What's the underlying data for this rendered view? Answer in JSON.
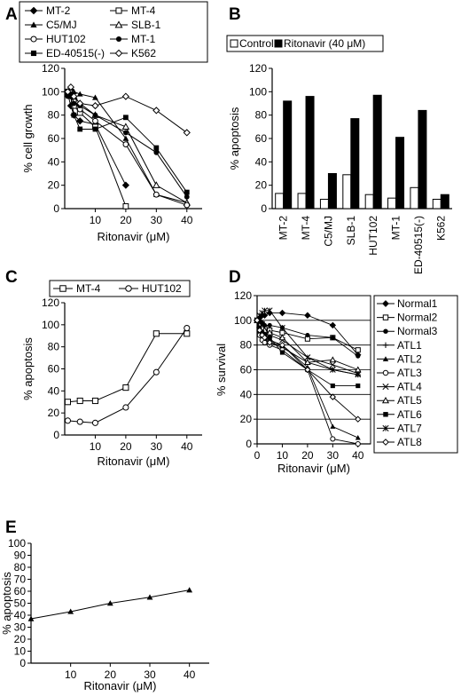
{
  "panels": [
    {
      "id": "A",
      "label": "A"
    },
    {
      "id": "B",
      "label": "B"
    },
    {
      "id": "C",
      "label": "C"
    },
    {
      "id": "D",
      "label": "D"
    },
    {
      "id": "E",
      "label": "E"
    }
  ],
  "chart_data": [
    {
      "panel": "A",
      "type": "line",
      "xlabel": "Ritonavir (μM)",
      "ylabel": "% cell growth",
      "xlim": [
        0,
        45
      ],
      "ylim": [
        0,
        120
      ],
      "xticks": [
        10,
        20,
        30,
        40
      ],
      "yticks": [
        0,
        20,
        40,
        60,
        80,
        100,
        120
      ],
      "legend_position": "top",
      "series": [
        {
          "name": "MT-2",
          "marker": "diamond-filled",
          "x": [
            1,
            2,
            3,
            5,
            10,
            20
          ],
          "y": [
            98,
            88,
            80,
            75,
            72,
            20
          ]
        },
        {
          "name": "MT-4",
          "marker": "square-open",
          "x": [
            1,
            2,
            3,
            5,
            10,
            20
          ],
          "y": [
            100,
            100,
            88,
            82,
            70,
            2
          ]
        },
        {
          "name": "C5/MJ",
          "marker": "triangle-filled",
          "x": [
            1,
            2,
            3,
            5,
            10,
            20,
            30,
            40
          ],
          "y": [
            100,
            102,
            100,
            98,
            95,
            60,
            12,
            5
          ]
        },
        {
          "name": "SLB-1",
          "marker": "triangle-open",
          "x": [
            1,
            2,
            3,
            5,
            10,
            20,
            30,
            40
          ],
          "y": [
            98,
            100,
            96,
            90,
            80,
            70,
            20,
            5
          ]
        },
        {
          "name": "HUT102",
          "marker": "circle-open",
          "x": [
            1,
            2,
            3,
            5,
            10,
            20,
            30,
            40
          ],
          "y": [
            100,
            100,
            92,
            85,
            75,
            55,
            12,
            3
          ]
        },
        {
          "name": "MT-1",
          "marker": "circle-filled",
          "x": [
            1,
            2,
            3,
            5,
            10,
            20,
            30,
            40
          ],
          "y": [
            96,
            98,
            90,
            88,
            80,
            65,
            48,
            10
          ]
        },
        {
          "name": "ED-40515(-)",
          "marker": "square-filled",
          "x": [
            1,
            2,
            3,
            5,
            10,
            20,
            30,
            40
          ],
          "y": [
            100,
            96,
            80,
            68,
            68,
            78,
            52,
            14
          ]
        },
        {
          "name": "K562",
          "marker": "diamond-open",
          "x": [
            1,
            2,
            3,
            5,
            10,
            20,
            30,
            40
          ],
          "y": [
            100,
            104,
            96,
            90,
            88,
            96,
            84,
            65
          ]
        }
      ]
    },
    {
      "panel": "B",
      "type": "bar",
      "ylabel": "% apoptosis",
      "ylim": [
        0,
        120
      ],
      "yticks": [
        0,
        20,
        40,
        60,
        80,
        100,
        120
      ],
      "categories": [
        "MT-2",
        "MT-4",
        "C5/MJ",
        "SLB-1",
        "HUT102",
        "MT-1",
        "ED-40515(-)",
        "K562"
      ],
      "legend_position": "top",
      "series": [
        {
          "name": "Control",
          "color": "#ffffff",
          "values": [
            13,
            13,
            8,
            29,
            12,
            9,
            18,
            8
          ]
        },
        {
          "name": "Ritonavir (40 μM)",
          "color": "#000000",
          "values": [
            92,
            96,
            30,
            77,
            97,
            61,
            84,
            12
          ]
        }
      ]
    },
    {
      "panel": "C",
      "type": "line",
      "xlabel": "Ritonavir (μM)",
      "ylabel": "% apoptosis",
      "xlim": [
        0,
        45
      ],
      "ylim": [
        0,
        120
      ],
      "xticks": [
        10,
        20,
        30,
        40
      ],
      "yticks": [
        0,
        20,
        40,
        60,
        80,
        100,
        120
      ],
      "legend_position": "top",
      "series": [
        {
          "name": "MT-4",
          "marker": "square-open",
          "x": [
            1,
            5,
            10,
            20,
            30,
            40
          ],
          "y": [
            30,
            31,
            31,
            43,
            92,
            92
          ]
        },
        {
          "name": "HUT102",
          "marker": "circle-open",
          "x": [
            1,
            5,
            10,
            20,
            30,
            40
          ],
          "y": [
            13,
            12,
            11,
            25,
            57,
            97
          ]
        }
      ]
    },
    {
      "panel": "D",
      "type": "line",
      "xlabel": "Ritonavir (μM)",
      "ylabel": "% survival",
      "xlim": [
        0,
        45
      ],
      "ylim": [
        0,
        120
      ],
      "xticks": [
        0,
        10,
        20,
        30,
        40
      ],
      "yticks": [
        0,
        20,
        40,
        60,
        80,
        100,
        120
      ],
      "grid": true,
      "legend_position": "right",
      "series": [
        {
          "name": "Normal1",
          "marker": "diamond-filled",
          "x": [
            0,
            1,
            2,
            3,
            5,
            10,
            20,
            30,
            40
          ],
          "y": [
            100,
            102,
            104,
            104,
            106,
            106,
            104,
            96,
            72
          ]
        },
        {
          "name": "Normal2",
          "marker": "square-open",
          "x": [
            0,
            1,
            2,
            3,
            5,
            10,
            20,
            30,
            40
          ],
          "y": [
            100,
            98,
            97,
            94,
            92,
            90,
            85,
            86,
            76
          ]
        },
        {
          "name": "Normal3",
          "marker": "circle-filled",
          "x": [
            0,
            1,
            2,
            3,
            5,
            10,
            20,
            30,
            40
          ],
          "y": [
            100,
            100,
            98,
            96,
            96,
            94,
            88,
            86,
            71
          ]
        },
        {
          "name": "ATL1",
          "marker": "plus",
          "x": [
            0,
            1,
            2,
            3,
            5,
            10,
            20,
            30,
            40
          ],
          "y": [
            100,
            90,
            86,
            84,
            82,
            78,
            66,
            60,
            56
          ]
        },
        {
          "name": "ATL2",
          "marker": "triangle-filled",
          "x": [
            0,
            1,
            2,
            3,
            5,
            10,
            20,
            30,
            40
          ],
          "y": [
            100,
            92,
            88,
            86,
            84,
            80,
            62,
            14,
            5
          ]
        },
        {
          "name": "ATL3",
          "marker": "circle-open",
          "x": [
            0,
            1,
            2,
            3,
            5,
            10,
            20,
            30,
            40
          ],
          "y": [
            100,
            88,
            84,
            82,
            80,
            76,
            60,
            4,
            0
          ]
        },
        {
          "name": "ATL4",
          "marker": "x",
          "x": [
            0,
            1,
            2,
            3,
            5,
            10,
            20,
            30,
            40
          ],
          "y": [
            100,
            94,
            92,
            90,
            88,
            84,
            70,
            64,
            57
          ]
        },
        {
          "name": "ATL5",
          "marker": "triangle-open",
          "x": [
            0,
            1,
            2,
            3,
            5,
            10,
            20,
            30,
            40
          ],
          "y": [
            100,
            96,
            94,
            92,
            90,
            86,
            66,
            68,
            60
          ]
        },
        {
          "name": "ATL6",
          "marker": "square-filled",
          "x": [
            0,
            1,
            2,
            3,
            5,
            10,
            20,
            30,
            40
          ],
          "y": [
            100,
            94,
            90,
            88,
            86,
            74,
            60,
            47,
            47
          ]
        },
        {
          "name": "ATL7",
          "marker": "star",
          "x": [
            0,
            1,
            2,
            3,
            5,
            10,
            20,
            30,
            40
          ],
          "y": [
            100,
            104,
            106,
            108,
            108,
            94,
            70,
            60,
            56
          ]
        },
        {
          "name": "ATL8",
          "marker": "diamond-open",
          "x": [
            0,
            1,
            2,
            3,
            5,
            10,
            20,
            30,
            40
          ],
          "y": [
            100,
            92,
            88,
            86,
            82,
            80,
            60,
            38,
            20
          ]
        }
      ]
    },
    {
      "panel": "E",
      "type": "line",
      "xlabel": "Ritonavir (μM)",
      "ylabel": "% apoptosis",
      "xlim": [
        0,
        45
      ],
      "ylim": [
        0,
        100
      ],
      "xticks": [
        10,
        20,
        30,
        40
      ],
      "yticks": [
        0,
        10,
        20,
        30,
        40,
        50,
        60,
        70,
        80,
        90,
        100
      ],
      "legend_position": "none",
      "series": [
        {
          "name": "",
          "marker": "triangle-filled",
          "x": [
            0,
            10,
            20,
            30,
            40
          ],
          "y": [
            37,
            43,
            50,
            55,
            61
          ]
        }
      ]
    }
  ]
}
